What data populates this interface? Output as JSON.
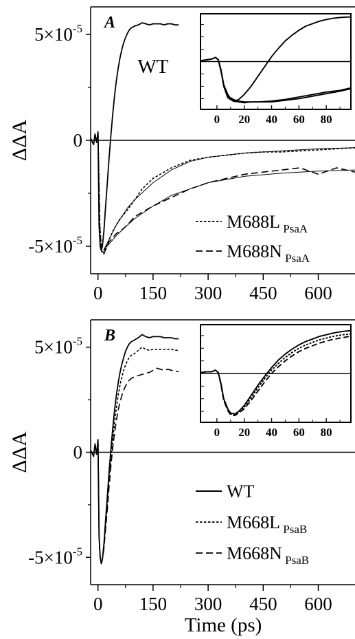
{
  "chart_data": [
    {
      "type": "line",
      "panel_label": "A",
      "ylabel": "ΔΔA",
      "xlabel": "",
      "xlim": [
        -20,
        700
      ],
      "ylim": [
        -6.3e-05,
        6.3e-05
      ],
      "x_ticks": [
        "0",
        "150",
        "300",
        "450",
        "600"
      ],
      "y_ticks": [
        "5×10⁻⁵",
        "0",
        "-5×10⁻⁵"
      ],
      "annotation": "WT",
      "legend": {
        "position": "bottom-right",
        "entries": [
          {
            "label": "M688L",
            "subscript": "PsaA",
            "style": "dotted"
          },
          {
            "label": "M688N",
            "subscript": "PsaA",
            "style": "dashed"
          }
        ]
      },
      "series": [
        {
          "name": "WT",
          "style": "solid",
          "x": [
            -20,
            -12,
            -8,
            -4,
            0,
            3,
            6,
            9,
            12,
            16,
            20,
            25,
            30,
            35,
            40,
            45,
            50,
            55,
            60,
            65,
            70,
            75,
            80,
            85,
            90,
            95,
            100,
            110,
            120,
            130,
            140,
            150,
            160,
            170,
            180,
            190,
            200,
            210,
            220
          ],
          "y": [
            1e-06,
            -2e-06,
            3e-06,
            -1e-06,
            4e-06,
            -4e-05,
            -5e-05,
            -5.2e-05,
            -5e-05,
            -4.3e-05,
            -3.3e-05,
            -2.1e-05,
            -9e-06,
            2e-06,
            1.2e-05,
            2.1e-05,
            2.8e-05,
            3.4e-05,
            3.9e-05,
            4.3e-05,
            4.6e-05,
            4.85e-05,
            5.05e-05,
            5.2e-05,
            5.3e-05,
            5.35e-05,
            5.4e-05,
            5.45e-05,
            5.55e-05,
            5.5e-05,
            5.45e-05,
            5.5e-05,
            5.5e-05,
            5.5e-05,
            5.45e-05,
            5.5e-05,
            5.5e-05,
            5.45e-05,
            5.45e-05
          ]
        },
        {
          "name": "M688L",
          "style": "dotted",
          "x": [
            0,
            5,
            10,
            15,
            20,
            30,
            40,
            50,
            60,
            80,
            100,
            120,
            150,
            200,
            250,
            300,
            350,
            400,
            450,
            500,
            550,
            600,
            650,
            700
          ],
          "y": [
            4e-06,
            -4e-05,
            -5.2e-05,
            -5.3e-05,
            -5.1e-05,
            -4.7e-05,
            -4.3e-05,
            -4e-05,
            -3.7e-05,
            -3.3e-05,
            -2.8e-05,
            -2.3e-05,
            -1.8e-05,
            -1.3e-05,
            -9.5e-06,
            -8e-06,
            -7e-06,
            -6e-06,
            -5.5e-06,
            -5.5e-06,
            -5e-06,
            -4.5e-06,
            -4e-06,
            -3.5e-06
          ]
        },
        {
          "name": "M688N",
          "style": "dashed",
          "x": [
            0,
            5,
            10,
            15,
            20,
            30,
            40,
            50,
            60,
            80,
            100,
            120,
            150,
            200,
            250,
            300,
            350,
            400,
            450,
            500,
            550,
            600,
            650,
            700
          ],
          "y": [
            4e-06,
            -4.2e-05,
            -5.3e-05,
            -5.4e-05,
            -5.2e-05,
            -4.8e-05,
            -4.6e-05,
            -4.4e-05,
            -4.3e-05,
            -4e-05,
            -3.6e-05,
            -3.4e-05,
            -3.1e-05,
            -2.7e-05,
            -2.3e-05,
            -2e-05,
            -1.8e-05,
            -1.6e-05,
            -1.5e-05,
            -1.4e-05,
            -1.3e-05,
            -1.6e-05,
            -1.3e-05,
            -1.5e-05
          ]
        },
        {
          "name": "fit-M688L",
          "style": "thin",
          "x": [
            15,
            30,
            50,
            80,
            100,
            150,
            200,
            250,
            300,
            400,
            500,
            600,
            700
          ],
          "y": [
            -5.2e-05,
            -4.7e-05,
            -4e-05,
            -3.2e-05,
            -2.8e-05,
            -2e-05,
            -1.4e-05,
            -1e-05,
            -8e-06,
            -6e-06,
            -5e-06,
            -4e-06,
            -3.5e-06
          ]
        },
        {
          "name": "fit-M688N",
          "style": "thin",
          "x": [
            15,
            30,
            50,
            80,
            100,
            150,
            200,
            250,
            300,
            400,
            500,
            600,
            700
          ],
          "y": [
            -5.2e-05,
            -4.9e-05,
            -4.5e-05,
            -4e-05,
            -3.7e-05,
            -3.1e-05,
            -2.6e-05,
            -2.3e-05,
            -2e-05,
            -1.7e-05,
            -1.55e-05,
            -1.45e-05,
            -1.4e-05
          ]
        }
      ],
      "inset": {
        "xlim": [
          -12,
          98
        ],
        "ylim": [
          -5.8e-05,
          5.8e-05
        ],
        "x_ticks": [
          "0",
          "20",
          "40",
          "60",
          "80"
        ],
        "series": [
          {
            "name": "WT",
            "style": "solid",
            "x": [
              -12,
              -8,
              -4,
              -1,
              1,
              3,
              5,
              8,
              10,
              13,
              16,
              20,
              25,
              30,
              35,
              40,
              45,
              50,
              55,
              60,
              65,
              70,
              75,
              80,
              85,
              90,
              95,
              98
            ],
            "y": [
              1e-06,
              2e-06,
              3e-06,
              5e-06,
              2e-06,
              -1e-05,
              -2.8e-05,
              -4e-05,
              -4.5e-05,
              -4.8e-05,
              -4.6e-05,
              -4e-05,
              -3e-05,
              -1.8e-05,
              -6e-06,
              6e-06,
              1.6e-05,
              2.5e-05,
              3.2e-05,
              3.8e-05,
              4.3e-05,
              4.6e-05,
              4.9e-05,
              5.1e-05,
              5.25e-05,
              5.35e-05,
              5.4e-05,
              5.4e-05
            ]
          },
          {
            "name": "M688L",
            "style": "solid",
            "x": [
              -12,
              -8,
              -4,
              -1,
              1,
              3,
              5,
              8,
              12,
              16,
              20,
              25,
              30,
              40,
              50,
              60,
              70,
              80,
              90,
              98
            ],
            "y": [
              1e-06,
              2e-06,
              3e-06,
              5e-06,
              2e-06,
              -1.2e-05,
              -2.8e-05,
              -4.2e-05,
              -4.6e-05,
              -4.8e-05,
              -4.9e-05,
              -4.9e-05,
              -4.9e-05,
              -4.9e-05,
              -4.7e-05,
              -4.5e-05,
              -4.2e-05,
              -3.9e-05,
              -3.6e-05,
              -3.3e-05
            ]
          },
          {
            "name": "M688N",
            "style": "solid",
            "x": [
              -12,
              -8,
              -4,
              -1,
              1,
              3,
              5,
              8,
              12,
              16,
              20,
              25,
              30,
              40,
              50,
              60,
              70,
              80,
              90,
              98
            ],
            "y": [
              1e-06,
              2e-06,
              3e-06,
              5e-06,
              2e-06,
              -1.1e-05,
              -3e-05,
              -4.4e-05,
              -4.8e-05,
              -4.9e-05,
              -5e-05,
              -4.9e-05,
              -4.9e-05,
              -4.8e-05,
              -4.6e-05,
              -4.3e-05,
              -4e-05,
              -3.7e-05,
              -3.5e-05,
              -3.2e-05
            ]
          }
        ]
      }
    },
    {
      "type": "line",
      "panel_label": "B",
      "ylabel": "ΔΔA",
      "xlabel": "Time (ps)",
      "xlim": [
        -20,
        700
      ],
      "ylim": [
        -6.3e-05,
        6.3e-05
      ],
      "x_ticks": [
        "0",
        "150",
        "300",
        "450",
        "600"
      ],
      "y_ticks": [
        "5×10⁻⁵",
        "0",
        "-5×10⁻⁵"
      ],
      "legend": {
        "position": "bottom-right",
        "entries": [
          {
            "label": "WT",
            "subscript": "",
            "style": "solid"
          },
          {
            "label": "M668L",
            "subscript": "PsaB",
            "style": "dotted"
          },
          {
            "label": "M668N",
            "subscript": "PsaB",
            "style": "dashed"
          }
        ]
      },
      "series": [
        {
          "name": "WT",
          "style": "solid",
          "x": [
            -20,
            -12,
            -8,
            -4,
            0,
            3,
            6,
            9,
            12,
            16,
            20,
            25,
            30,
            35,
            40,
            45,
            50,
            55,
            60,
            65,
            70,
            75,
            80,
            85,
            90,
            95,
            100,
            110,
            120,
            130,
            140,
            150,
            160,
            170,
            180,
            190,
            200,
            210,
            220
          ],
          "y": [
            1e-06,
            -2e-06,
            4e-06,
            -1e-06,
            6e-06,
            -4e-05,
            -5e-05,
            -5.3e-05,
            -5.1e-05,
            -4.4e-05,
            -3.4e-05,
            -2.2e-05,
            -1e-05,
            1e-06,
            1.1e-05,
            2e-05,
            2.7e-05,
            3.3e-05,
            3.8e-05,
            4.2e-05,
            4.5e-05,
            4.8e-05,
            5e-05,
            5.15e-05,
            5.25e-05,
            5.3e-05,
            5.35e-05,
            5.45e-05,
            5.6e-05,
            5.5e-05,
            5.45e-05,
            5.5e-05,
            5.5e-05,
            5.5e-05,
            5.45e-05,
            5.45e-05,
            5.45e-05,
            5.4e-05,
            5.4e-05
          ]
        },
        {
          "name": "M668L",
          "style": "dotted",
          "x": [
            0,
            3,
            6,
            9,
            12,
            16,
            20,
            25,
            30,
            35,
            40,
            45,
            50,
            55,
            60,
            65,
            70,
            75,
            80,
            85,
            90,
            95,
            100,
            110,
            120,
            130,
            140,
            150,
            160,
            170,
            180,
            190,
            200,
            210,
            220
          ],
          "y": [
            6e-06,
            -4e-05,
            -5e-05,
            -5.3e-05,
            -5.1e-05,
            -4.5e-05,
            -3.6e-05,
            -2.5e-05,
            -1.3e-05,
            -3e-06,
            6e-06,
            1.4e-05,
            2.1e-05,
            2.7e-05,
            3.2e-05,
            3.6e-05,
            3.9e-05,
            4.15e-05,
            4.35e-05,
            4.5e-05,
            4.6e-05,
            4.65e-05,
            4.7e-05,
            4.85e-05,
            5e-05,
            4.9e-05,
            4.85e-05,
            4.9e-05,
            4.9e-05,
            4.9e-05,
            4.9e-05,
            4.9e-05,
            4.9e-05,
            4.85e-05,
            4.85e-05
          ]
        },
        {
          "name": "M668N",
          "style": "dashed",
          "x": [
            0,
            3,
            6,
            9,
            12,
            16,
            20,
            25,
            30,
            35,
            40,
            45,
            50,
            55,
            60,
            65,
            70,
            75,
            80,
            85,
            90,
            95,
            100,
            110,
            120,
            130,
            140,
            150,
            160,
            170,
            180,
            190,
            200,
            210,
            220
          ],
          "y": [
            6e-06,
            -4e-05,
            -5e-05,
            -5.3e-05,
            -5.1e-05,
            -4.6e-05,
            -3.8e-05,
            -2.8e-05,
            -1.7e-05,
            -7e-06,
            2e-06,
            9e-06,
            1.5e-05,
            2e-05,
            2.4e-05,
            2.7e-05,
            2.95e-05,
            3.15e-05,
            3.3e-05,
            3.42e-05,
            3.5e-05,
            3.55e-05,
            3.6e-05,
            3.65e-05,
            3.7e-05,
            3.75e-05,
            3.8e-05,
            3.9e-05,
            4e-05,
            3.95e-05,
            3.9e-05,
            3.95e-05,
            3.9e-05,
            3.85e-05,
            3.85e-05
          ]
        }
      ],
      "inset": {
        "xlim": [
          -12,
          98
        ],
        "ylim": [
          -5.8e-05,
          5.8e-05
        ],
        "x_ticks": [
          "0",
          "20",
          "40",
          "60",
          "80"
        ],
        "series": [
          {
            "name": "WT",
            "style": "solid",
            "x": [
              -12,
              -8,
              -4,
              -1,
              1,
              3,
              5,
              8,
              10,
              13,
              16,
              20,
              25,
              30,
              35,
              40,
              45,
              50,
              55,
              60,
              65,
              70,
              75,
              80,
              85,
              90,
              95,
              98
            ],
            "y": [
              1e-06,
              2e-06,
              2e-06,
              4e-06,
              1e-06,
              -1.2e-05,
              -3e-05,
              -4.2e-05,
              -4.7e-05,
              -4.8e-05,
              -4.5e-05,
              -3.8e-05,
              -2.6e-05,
              -1.4e-05,
              -3e-06,
              7e-06,
              1.6e-05,
              2.3e-05,
              2.9e-05,
              3.4e-05,
              3.8e-05,
              4.1e-05,
              4.4e-05,
              4.6e-05,
              4.8e-05,
              4.95e-05,
              5.05e-05,
              5.1e-05
            ]
          },
          {
            "name": "M668L",
            "style": "dotted",
            "x": [
              -12,
              -8,
              -4,
              -1,
              1,
              3,
              5,
              8,
              10,
              13,
              16,
              20,
              25,
              30,
              35,
              40,
              45,
              50,
              55,
              60,
              65,
              70,
              75,
              80,
              85,
              90,
              95,
              98
            ],
            "y": [
              1e-06,
              2e-06,
              2e-06,
              4e-06,
              1e-06,
              -1.3e-05,
              -3.1e-05,
              -4.3e-05,
              -4.8e-05,
              -4.9e-05,
              -4.6e-05,
              -4e-05,
              -2.9e-05,
              -1.7e-05,
              -6e-06,
              4e-06,
              1.2e-05,
              1.9e-05,
              2.5e-05,
              3e-05,
              3.4e-05,
              3.7e-05,
              4e-05,
              4.2e-05,
              4.4e-05,
              4.55e-05,
              4.65e-05,
              4.7e-05
            ]
          },
          {
            "name": "M668N",
            "style": "dashed",
            "x": [
              -12,
              -8,
              -4,
              -1,
              1,
              3,
              5,
              8,
              10,
              13,
              16,
              20,
              25,
              30,
              35,
              40,
              45,
              50,
              55,
              60,
              65,
              70,
              75,
              80,
              85,
              90,
              95,
              98
            ],
            "y": [
              1e-06,
              2e-06,
              2e-06,
              4e-06,
              1e-06,
              -1.4e-05,
              -3.2e-05,
              -4.4e-05,
              -4.9e-05,
              -5e-05,
              -4.7e-05,
              -4.2e-05,
              -3.2e-05,
              -2.1e-05,
              -1e-05,
              0.0,
              8e-06,
              1.5e-05,
              2.1e-05,
              2.6e-05,
              3e-05,
              3.3e-05,
              3.6e-05,
              3.85e-05,
              4.05e-05,
              4.2e-05,
              4.35e-05,
              4.45e-05
            ]
          }
        ]
      }
    }
  ]
}
